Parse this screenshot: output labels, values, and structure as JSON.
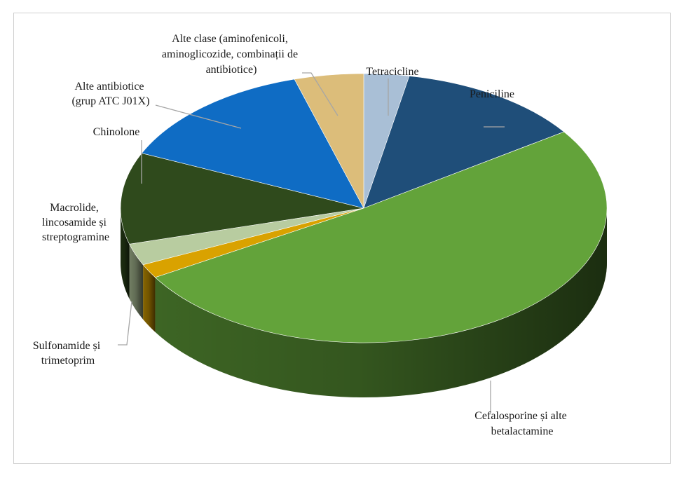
{
  "chart_data": {
    "type": "pie",
    "title": "",
    "style": "3d-tilted",
    "slices": [
      {
        "label": "Tetracicline",
        "value": 3.0,
        "color": "#a9bfd6"
      },
      {
        "label": "Peniciline",
        "value": 12.4,
        "color": "#1f4e79"
      },
      {
        "label": "Cefalosporine și alte betalactamine",
        "value": 51.0,
        "color": "#63a33a"
      },
      {
        "label": "Sulfonamide și trimetoprim",
        "value": 1.7,
        "color": "#d9a200"
      },
      {
        "label": "Macrolide, lincosamide și streptogramine",
        "value": 2.6,
        "color": "#b8cca0"
      },
      {
        "label": "Chinolone",
        "value": 11.0,
        "color": "#2f4a1c"
      },
      {
        "label": "Alte antibiotice (grup ATC J01X)",
        "value": 13.7,
        "color": "#0f6cc4"
      },
      {
        "label": "Alte clase (aminofenicoli, aminoglicozide, combinații de antibiotice)",
        "value": 4.6,
        "color": "#dcbd7a"
      }
    ],
    "legend": "none",
    "data_labels": "category names with leader lines"
  },
  "labels": {
    "tetracicline": [
      "Tetracicline"
    ],
    "peniciline": [
      "Peniciline"
    ],
    "cefalosporine": [
      "Cefalosporine și alte",
      "betalactamine"
    ],
    "sulfonamide": [
      "Sulfonamide și",
      "trimetoprim"
    ],
    "macrolide": [
      "Macrolide,",
      "lincosamide și",
      "streptogramine"
    ],
    "chinolone": [
      "Chinolone"
    ],
    "alte_antibiotice": [
      "Alte antibiotice",
      "(grup ATC J01X)"
    ],
    "alte_clase": [
      "Alte clase (aminofenicoli,",
      "aminoglicozide, combinații de",
      "antibiotice)"
    ]
  }
}
